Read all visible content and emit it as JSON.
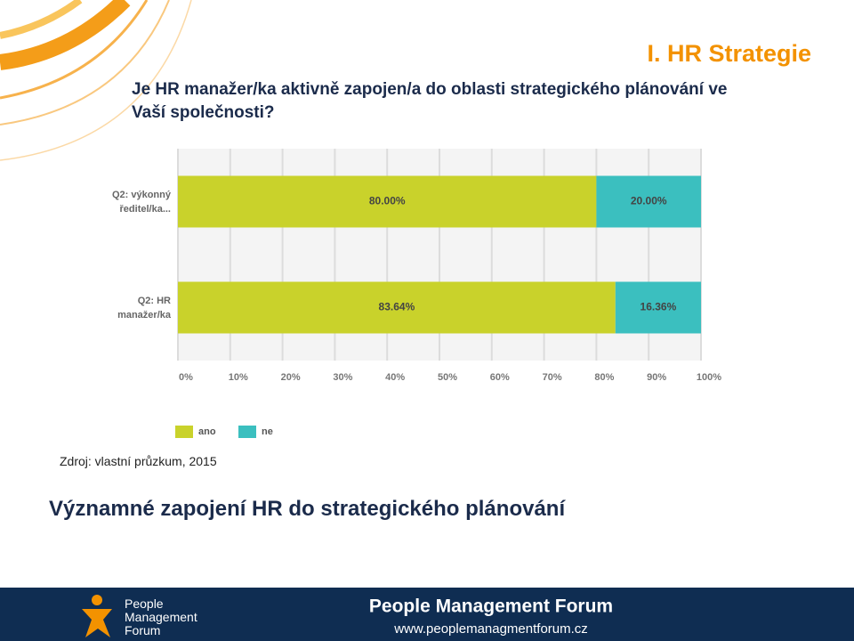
{
  "header": {
    "section": "I. HR Strategie",
    "question": "Je HR manažer/ka aktivně zapojen/a do oblasti strategického plánování ve Vaší společnosti?"
  },
  "chart_data": {
    "type": "stacked_barh",
    "categories": [
      "Q2: výkonný ředitel/ka...",
      "Q2: HR manažer/ka"
    ],
    "series": [
      {
        "name": "ano",
        "color": "#c9d22b",
        "values": [
          80,
          83.64
        ],
        "value_labels": [
          "80.00%",
          "83.64%"
        ]
      },
      {
        "name": "ne",
        "color": "#3bbfbf",
        "values": [
          20,
          16.36
        ],
        "value_labels": [
          "20.00%",
          "16.36%"
        ]
      }
    ],
    "xlim": [
      0,
      100
    ],
    "xticks": [
      {
        "value": 0,
        "label": "0%"
      },
      {
        "value": 10,
        "label": "10%"
      },
      {
        "value": 20,
        "label": "20%"
      },
      {
        "value": 30,
        "label": "30%"
      },
      {
        "value": 40,
        "label": "40%"
      },
      {
        "value": 50,
        "label": "50%"
      },
      {
        "value": 60,
        "label": "60%"
      },
      {
        "value": 70,
        "label": "70%"
      },
      {
        "value": 80,
        "label": "80%"
      },
      {
        "value": 90,
        "label": "90%"
      },
      {
        "value": 100,
        "label": "100%"
      }
    ],
    "grid": true,
    "legend": "bottom"
  },
  "source": "Zdroj: vlastní průzkum, 2015",
  "conclusion": "Významné zapojení HR do strategického plánování",
  "footer": {
    "logo_text": "People Management Forum",
    "brand": "People Management Forum",
    "url": "www.peoplemanagmentforum.cz"
  }
}
